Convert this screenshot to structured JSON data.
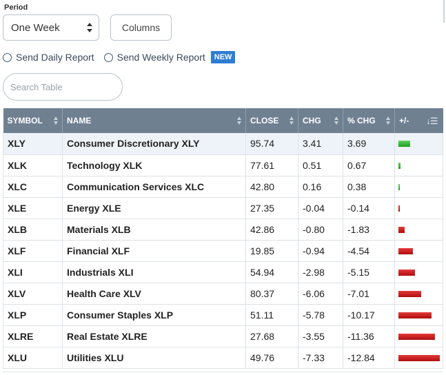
{
  "period": {
    "label": "Period",
    "selected": "One Week"
  },
  "columns_button": "Columns",
  "reports": {
    "daily": "Send Daily Report",
    "weekly": "Send Weekly Report",
    "new_badge": "NEW"
  },
  "search": {
    "placeholder": "Search Table"
  },
  "table": {
    "headers": [
      "SYMBOL",
      "NAME",
      "CLOSE",
      "CHG",
      "% CHG",
      "+/-"
    ],
    "rows": [
      {
        "symbol": "XLY",
        "name": "Consumer Discretionary XLY",
        "close": "95.74",
        "chg": "3.41",
        "pct_chg": "3.69"
      },
      {
        "symbol": "XLK",
        "name": "Technology XLK",
        "close": "77.61",
        "chg": "0.51",
        "pct_chg": "0.67"
      },
      {
        "symbol": "XLC",
        "name": "Communication Services XLC",
        "close": "42.80",
        "chg": "0.16",
        "pct_chg": "0.38"
      },
      {
        "symbol": "XLE",
        "name": "Energy XLE",
        "close": "27.35",
        "chg": "-0.04",
        "pct_chg": "-0.14"
      },
      {
        "symbol": "XLB",
        "name": "Materials XLB",
        "close": "42.86",
        "chg": "-0.80",
        "pct_chg": "-1.83"
      },
      {
        "symbol": "XLF",
        "name": "Financial XLF",
        "close": "19.85",
        "chg": "-0.94",
        "pct_chg": "-4.54"
      },
      {
        "symbol": "XLI",
        "name": "Industrials XLI",
        "close": "54.94",
        "chg": "-2.98",
        "pct_chg": "-5.15"
      },
      {
        "symbol": "XLV",
        "name": "Health Care XLV",
        "close": "80.37",
        "chg": "-6.06",
        "pct_chg": "-7.01"
      },
      {
        "symbol": "XLP",
        "name": "Consumer Staples XLP",
        "close": "51.11",
        "chg": "-5.78",
        "pct_chg": "-10.17"
      },
      {
        "symbol": "XLRE",
        "name": "Real Estate XLRE",
        "close": "27.68",
        "chg": "-3.55",
        "pct_chg": "-11.36"
      },
      {
        "symbol": "XLU",
        "name": "Utilities XLU",
        "close": "49.76",
        "chg": "-7.33",
        "pct_chg": "-12.84"
      }
    ]
  },
  "colors": {
    "header_bg": "#6f8091",
    "name_link": "#1f4e79",
    "positive_bar": "#22a022",
    "negative_bar": "#c81414",
    "new_badge": "#2e7dd2"
  },
  "icons": {
    "select_arrows": "updown-arrows-icon",
    "radio": "radio-icon",
    "sort": "sort-icon",
    "sort_desc": "sort-descending-icon"
  }
}
